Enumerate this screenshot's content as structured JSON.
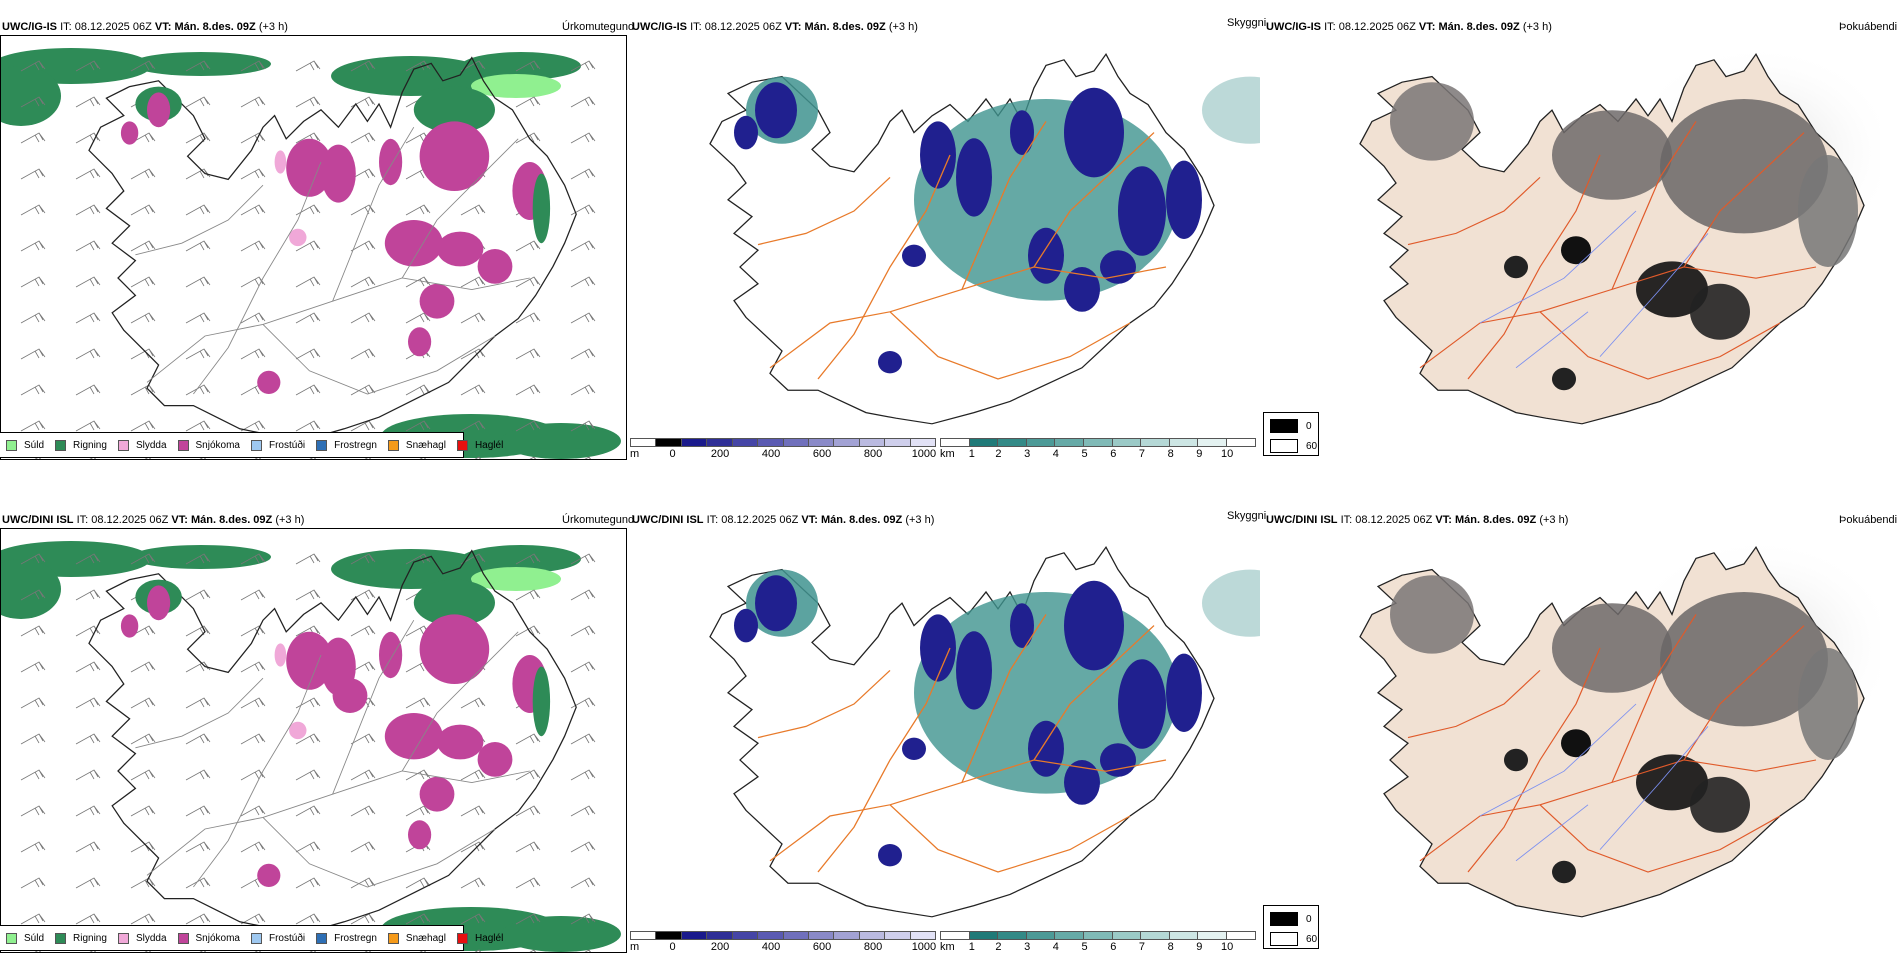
{
  "rows": [
    {
      "model": "UWC/IG-IS",
      "it_label": "IT:",
      "it_value": "08.12.2025 06Z",
      "vt_label": "VT:",
      "vt_value": "Mán. 8.des. 09Z",
      "lead": "(+3 h)"
    },
    {
      "model": "UWC/DINI ISL",
      "it_label": "IT:",
      "it_value": "08.12.2025 06Z",
      "vt_label": "VT:",
      "vt_value": "Mán. 8.des. 09Z",
      "lead": "(+3 h)"
    }
  ],
  "panel_titles": {
    "precip": "Úrkomutegund",
    "cloud": "Skyggni",
    "fog": "Þokuábendi"
  },
  "precip_legend": [
    {
      "label": "Súld",
      "color": "#90f090"
    },
    {
      "label": "Rigning",
      "color": "#2e8b57"
    },
    {
      "label": "Slydda",
      "color": "#f0a8d8"
    },
    {
      "label": "Snjókoma",
      "color": "#c0449a"
    },
    {
      "label": "Frostúði",
      "color": "#9ec8f0"
    },
    {
      "label": "Frostregn",
      "color": "#2e6fb5"
    },
    {
      "label": "Snæhagl",
      "color": "#f59a1a"
    },
    {
      "label": "Haglél",
      "color": "#e81010"
    }
  ],
  "ceiling_bar": {
    "unit": "m",
    "ticks": [
      "0",
      "200",
      "400",
      "600",
      "800",
      "1000"
    ],
    "colors": [
      "#ffffff",
      "#000000",
      "#1a1a8c",
      "#2e2e96",
      "#4545a6",
      "#5a5ab2",
      "#7070bc",
      "#8a8ac8",
      "#a2a2d4",
      "#babae0",
      "#cfcfec",
      "#e2e2f6"
    ]
  },
  "visibility_bar": {
    "unit": "km",
    "ticks": [
      "1",
      "2",
      "3",
      "4",
      "5",
      "6",
      "7",
      "8",
      "9",
      "10"
    ],
    "colors": [
      "#ffffff",
      "#1f7a78",
      "#338a87",
      "#4c9a97",
      "#66aaa7",
      "#80bab7",
      "#9bcac7",
      "#b5d8d6",
      "#cde6e4",
      "#e4f2f1",
      "#ffffff"
    ]
  },
  "fog_legend": [
    {
      "label": "0",
      "color": "#000000"
    },
    {
      "label": "60",
      "color": "#ffffff"
    }
  ],
  "colors": {
    "rain": "#2e8b57",
    "snow": "#c0449a",
    "drizzle": "#90f090",
    "sleet": "#f0a8d8",
    "ceiling": "#20208f",
    "visibility": "#3f938f",
    "roads": "#e87a2a",
    "land": "#f1e1d3",
    "rivers": "#7b8ff0"
  }
}
